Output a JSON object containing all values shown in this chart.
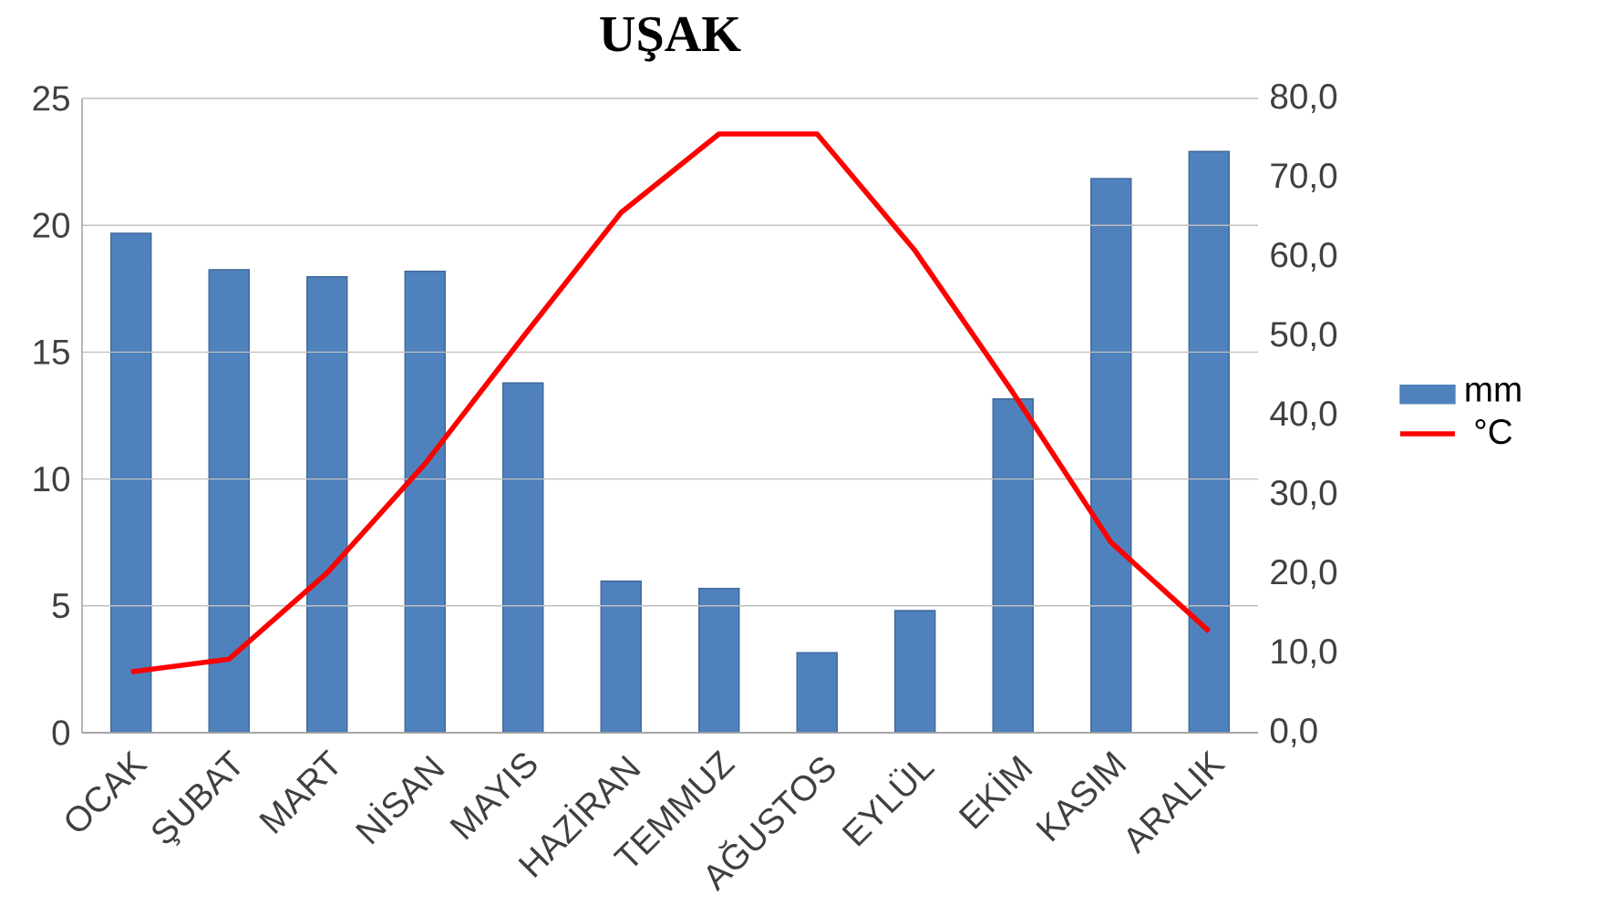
{
  "chart_data": {
    "type": "bar",
    "title": "UŞAK",
    "categories": [
      "OCAK",
      "ŞUBAT",
      "MART",
      "NİSAN",
      "MAYIS",
      "HAZİRAN",
      "TEMMUZ",
      "AĞUSTOS",
      "EYLÜL",
      "EKİM",
      "KASIM",
      "ARALIK"
    ],
    "series": [
      {
        "name": "mm",
        "axis": "y2",
        "color": "#4f81bd",
        "values": [
          63.0,
          58.4,
          57.5,
          58.2,
          44.1,
          19.1,
          18.2,
          10.1,
          15.4,
          42.1,
          69.9,
          73.3
        ]
      },
      {
        "name": "°C",
        "type": "line",
        "color": "#ff0000",
        "values": [
          2.4,
          2.9,
          6.3,
          10.6,
          15.6,
          20.5,
          23.6,
          23.6,
          19.0,
          13.4,
          7.5,
          4.0
        ]
      }
    ],
    "ylim": [
      0,
      25
    ],
    "yticks": [
      0,
      5,
      10,
      15,
      20,
      25
    ],
    "y2lim": [
      0,
      80
    ],
    "y2ticks": [
      {
        "value": 0,
        "label": "0,0"
      },
      {
        "value": 10,
        "label": "10,0"
      },
      {
        "value": 20,
        "label": "20,0"
      },
      {
        "value": 30,
        "label": "30,0"
      },
      {
        "value": 40,
        "label": "40,0"
      },
      {
        "value": 50,
        "label": "50,0"
      },
      {
        "value": 60,
        "label": "60,0"
      },
      {
        "value": 70,
        "label": "70,0"
      },
      {
        "value": 80,
        "label": "80,0"
      }
    ],
    "grid": "y",
    "legend": "right"
  }
}
